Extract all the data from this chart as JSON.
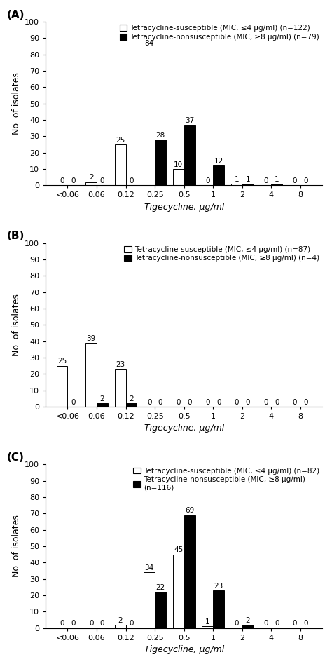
{
  "panels": [
    {
      "label": "A",
      "legend_susceptible": "Tetracycline-susceptible (MIC, ≤4 μg/ml) (n=122)",
      "legend_nonsusceptible": "Tetracycline-nonsusceptible (MIC, ≥8 μg/ml) (n=79)",
      "categories": [
        "<0.06",
        "0.06",
        "0.12",
        "0.25",
        "0.5",
        "1",
        "2",
        "4",
        "8"
      ],
      "susceptible": [
        0,
        2,
        25,
        84,
        10,
        0,
        1,
        0,
        0
      ],
      "nonsusceptible": [
        0,
        0,
        0,
        28,
        37,
        12,
        1,
        1,
        0
      ]
    },
    {
      "label": "B",
      "legend_susceptible": "Tetracycline-susceptible (MIC, ≤4 μg/ml) (n=87)",
      "legend_nonsusceptible": "Tetracycline-nonsusceptible (MIC, ≥8 μg/ml) (n=4)",
      "categories": [
        "<0.06",
        "0.06",
        "0.12",
        "0.25",
        "0.5",
        "1",
        "2",
        "4",
        "8"
      ],
      "susceptible": [
        25,
        39,
        23,
        0,
        0,
        0,
        0,
        0,
        0
      ],
      "nonsusceptible": [
        0,
        2,
        2,
        0,
        0,
        0,
        0,
        0,
        0
      ]
    },
    {
      "label": "C",
      "legend_susceptible": "Tetracycline-susceptible (MIC, ≤4 μg/ml) (n=82)",
      "legend_nonsusceptible": "Tetracycline-nonsusceptible (MIC, ≥8 μg/ml)\n(n=116)",
      "categories": [
        "<0.06",
        "0.06",
        "0.12",
        "0.25",
        "0.5",
        "1",
        "2",
        "4",
        "8"
      ],
      "susceptible": [
        0,
        0,
        2,
        34,
        45,
        1,
        0,
        0,
        0
      ],
      "nonsusceptible": [
        0,
        0,
        0,
        22,
        69,
        23,
        2,
        0,
        0
      ]
    }
  ],
  "ylabel": "No. of isolates",
  "xlabel": "Tigecycline, μg/ml",
  "ylim": [
    0,
    100
  ],
  "yticks": [
    0,
    10,
    20,
    30,
    40,
    50,
    60,
    70,
    80,
    90,
    100
  ],
  "bar_width": 0.38,
  "susceptible_color": "white",
  "nonsusceptible_color": "black",
  "edgecolor": "black",
  "fontsize_label": 9,
  "fontsize_tick": 8,
  "fontsize_bar": 7.5,
  "fontsize_legend": 7.5,
  "fontsize_panel_label": 11
}
